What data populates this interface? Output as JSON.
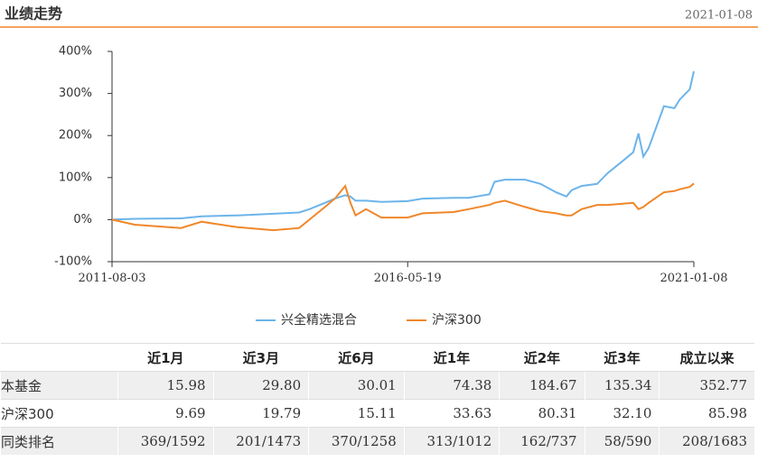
{
  "header": {
    "title": "业绩走势",
    "date": "2021-01-08"
  },
  "chart_data": {
    "type": "line",
    "x": [
      "2011-08-03",
      "2011-12-15",
      "2012-09-15",
      "2013-01-15",
      "2013-08-15",
      "2014-03-15",
      "2014-08-15",
      "2014-10-15",
      "2015-01-15",
      "2015-03-15",
      "2015-05-15",
      "2015-06-15",
      "2015-07-15",
      "2015-09-15",
      "2015-12-15",
      "2016-05-19",
      "2016-08-15",
      "2017-02-15",
      "2017-05-15",
      "2017-09-15",
      "2017-10-15",
      "2017-12-15",
      "2018-04-15",
      "2018-07-15",
      "2018-10-15",
      "2018-12-15",
      "2019-01-15",
      "2019-03-15",
      "2019-06-15",
      "2019-08-15",
      "2019-11-15",
      "2020-01-15",
      "2020-02-15",
      "2020-03-15",
      "2020-04-15",
      "2020-07-15",
      "2020-09-15",
      "2020-10-15",
      "2020-12-15",
      "2021-01-08"
    ],
    "series": [
      {
        "name": "兴全精选混合",
        "color": "#6cb4ea",
        "values": [
          0,
          2,
          3,
          8,
          10,
          14,
          17,
          25,
          40,
          50,
          58,
          55,
          45,
          45,
          42,
          44,
          50,
          52,
          52,
          60,
          90,
          95,
          95,
          85,
          65,
          55,
          70,
          80,
          85,
          110,
          140,
          160,
          205,
          150,
          170,
          270,
          265,
          285,
          310,
          352.77
        ]
      },
      {
        "name": "沪深300",
        "color": "#f0872a",
        "values": [
          0,
          -12,
          -20,
          -5,
          -18,
          -25,
          -20,
          0,
          30,
          50,
          80,
          40,
          10,
          25,
          5,
          5,
          15,
          18,
          25,
          35,
          40,
          45,
          30,
          20,
          15,
          10,
          10,
          25,
          35,
          35,
          38,
          40,
          25,
          30,
          40,
          65,
          68,
          72,
          78,
          85.98
        ]
      }
    ],
    "xlim": [
      "2011-08-03",
      "2021-01-08"
    ],
    "xticks": [
      "2011-08-03",
      "2016-05-19",
      "2021-01-08"
    ],
    "ylim": [
      -100,
      400
    ],
    "yticks": [
      {
        "value": -100,
        "label": "-100%"
      },
      {
        "value": 0,
        "label": "0%"
      },
      {
        "value": 100,
        "label": "100%"
      },
      {
        "value": 200,
        "label": "200%"
      },
      {
        "value": 300,
        "label": "300%"
      },
      {
        "value": 400,
        "label": "400%"
      }
    ]
  },
  "table": {
    "header": [
      "近1月",
      "近3月",
      "近6月",
      "近1年",
      "近2年",
      "近3年",
      "成立以来"
    ],
    "rows": [
      [
        "本基金",
        "15.98",
        "29.80",
        "30.01",
        "74.38",
        "184.67",
        "135.34",
        "352.77"
      ],
      [
        "沪深300",
        "9.69",
        "19.79",
        "15.11",
        "33.63",
        "80.31",
        "32.10",
        "85.98"
      ],
      [
        "同类排名",
        "369/1592",
        "201/1473",
        "370/1258",
        "313/1012",
        "162/737",
        "58/590",
        "208/1683"
      ]
    ]
  }
}
